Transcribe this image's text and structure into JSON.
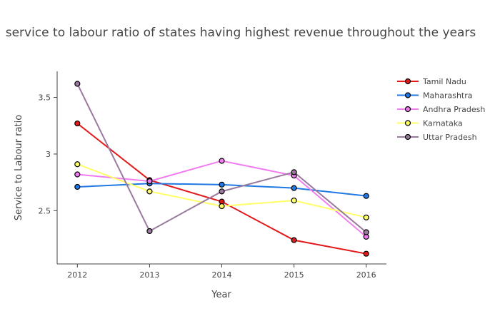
{
  "chart_data": {
    "type": "line",
    "title": "service to labour ratio of states having highest revenue throughout the years",
    "xlabel": "Year",
    "ylabel": "Service to Labour ratio",
    "x": [
      2012,
      2013,
      2014,
      2015,
      2016
    ],
    "x_tick_labels": [
      "2012",
      "2013",
      "2014",
      "2015",
      "2016"
    ],
    "y_ticks": [
      2.5,
      3,
      3.5
    ],
    "y_tick_labels": [
      "2.5",
      "3",
      "3.5"
    ],
    "ylim": [
      2.03,
      3.73
    ],
    "xlim": [
      2011.72,
      2016.28
    ],
    "grid": false,
    "legend_position": "right",
    "series": [
      {
        "name": "Tamil Nadu",
        "color": "#e31a1c",
        "values": [
          3.27,
          2.77,
          2.58,
          2.24,
          2.12
        ]
      },
      {
        "name": "Maharashtra",
        "color": "#1f78e4",
        "values": [
          2.71,
          2.74,
          2.73,
          2.7,
          2.63
        ]
      },
      {
        "name": "Andhra Pradesh",
        "color": "#f07cf0",
        "values": [
          2.82,
          2.76,
          2.94,
          2.81,
          2.27
        ]
      },
      {
        "name": "Karnataka",
        "color": "#ffff66",
        "values": [
          2.91,
          2.67,
          2.54,
          2.59,
          2.44
        ]
      },
      {
        "name": "Uttar Pradesh",
        "color": "#9a7a9e",
        "values": [
          3.62,
          2.32,
          2.67,
          2.84,
          2.31
        ]
      }
    ]
  }
}
